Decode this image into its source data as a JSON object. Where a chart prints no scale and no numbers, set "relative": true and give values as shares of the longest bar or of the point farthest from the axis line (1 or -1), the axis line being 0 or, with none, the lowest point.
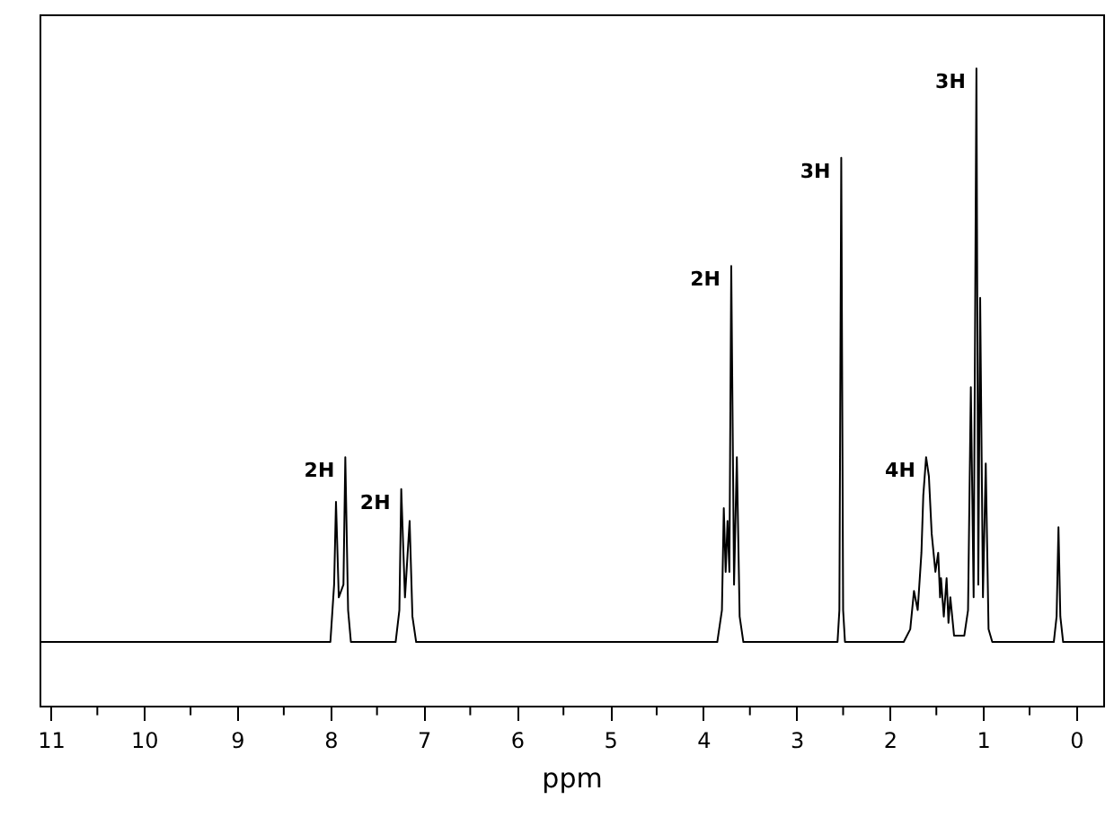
{
  "chart_data": {
    "type": "line",
    "xlabel": "ppm",
    "relative": true,
    "color": "#000000",
    "xlim": [
      11.12,
      -0.29
    ],
    "xticks": [
      11,
      {
        "value": 10.5,
        "label": null
      },
      10,
      {
        "value": 9.5,
        "label": null
      },
      9,
      {
        "value": 8.5,
        "label": null
      },
      8,
      {
        "value": 7.5,
        "label": null
      },
      7,
      {
        "value": 6.5,
        "label": null
      },
      6,
      {
        "value": 5.5,
        "label": null
      },
      5,
      {
        "value": 4.5,
        "label": null
      },
      4,
      {
        "value": 3.5,
        "label": null
      },
      3,
      {
        "value": 2.5,
        "label": null
      },
      2,
      {
        "value": 1.5,
        "label": null
      },
      1,
      {
        "value": 0.5,
        "label": null
      },
      0
    ],
    "x": [
      11.12,
      8.0,
      7.96,
      7.94,
      7.91,
      7.86,
      7.84,
      7.81,
      7.78,
      7.3,
      7.26,
      7.24,
      7.2,
      7.15,
      7.12,
      7.08,
      3.85,
      3.8,
      3.78,
      3.76,
      3.74,
      3.72,
      3.7,
      3.67,
      3.64,
      3.61,
      3.57,
      2.56,
      2.54,
      2.52,
      2.5,
      2.48,
      1.85,
      1.78,
      1.74,
      1.7,
      1.66,
      1.64,
      1.61,
      1.58,
      1.55,
      1.51,
      1.48,
      1.46,
      1.45,
      1.42,
      1.39,
      1.37,
      1.35,
      1.31,
      1.2,
      1.16,
      1.13,
      1.1,
      1.07,
      1.05,
      1.03,
      1.0,
      0.97,
      0.94,
      0.9,
      0.24,
      0.21,
      0.19,
      0.17,
      0.14,
      -0.29
    ],
    "values": [
      0.1,
      0.1,
      0.19,
      0.32,
      0.17,
      0.19,
      0.39,
      0.15,
      0.1,
      0.1,
      0.15,
      0.34,
      0.17,
      0.29,
      0.14,
      0.1,
      0.1,
      0.15,
      0.31,
      0.21,
      0.29,
      0.21,
      0.69,
      0.19,
      0.39,
      0.14,
      0.1,
      0.1,
      0.15,
      0.86,
      0.15,
      0.1,
      0.1,
      0.12,
      0.18,
      0.15,
      0.24,
      0.33,
      0.39,
      0.36,
      0.27,
      0.21,
      0.24,
      0.17,
      0.2,
      0.14,
      0.2,
      0.13,
      0.17,
      0.11,
      0.11,
      0.15,
      0.5,
      0.17,
      1,
      0.19,
      0.64,
      0.17,
      0.38,
      0.12,
      0.1,
      0.1,
      0.14,
      0.28,
      0.14,
      0.1,
      0.1
    ],
    "annotations": [
      {
        "text": "2H",
        "x": 7.84,
        "y": 0.39
      },
      {
        "text": "2H",
        "x": 7.24,
        "y": 0.34
      },
      {
        "text": "2H",
        "x": 3.7,
        "y": 0.69
      },
      {
        "text": "3H",
        "x": 2.52,
        "y": 0.86
      },
      {
        "text": "4H",
        "x": 1.61,
        "y": 0.39
      },
      {
        "text": "3H",
        "x": 1.07,
        "y": 1
      }
    ]
  }
}
